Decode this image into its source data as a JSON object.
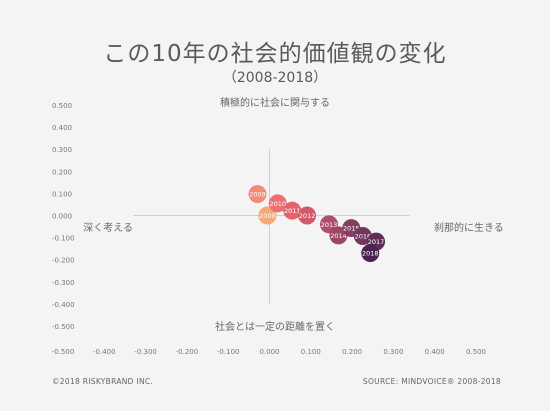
{
  "title": "この10年の社会的価値観の変化",
  "subtitle": "（2008-2018）",
  "footer_left": "©2018 RISKYBRAND INC.",
  "footer_right": "SOURCE: MINDVOICE® 2008-2018",
  "chart_data": {
    "type": "scatter",
    "xlim": [
      -0.5,
      0.5
    ],
    "ylim": [
      -0.5,
      0.5
    ],
    "x_ticks": [
      "-0.500",
      "-0.400",
      "-0.300",
      "-0.200",
      "-0.100",
      "0.000",
      "0.100",
      "0.200",
      "0.300",
      "0.400",
      "0.500"
    ],
    "y_ticks": [
      "0.500",
      "0.400",
      "0.300",
      "0.200",
      "0.100",
      "0.000",
      "-0.100",
      "-0.200",
      "-0.300",
      "-0.400",
      "-0.500"
    ],
    "grid": false,
    "axis_labels": {
      "top": "積極的に社会に関与する",
      "bottom": "社会とは一定の距離を置く",
      "left": "深く考える",
      "right": "刹那的に生きる"
    },
    "points": [
      {
        "label": "2008",
        "x": -0.005,
        "y": 0.0,
        "color": "#f6a876"
      },
      {
        "label": "2009",
        "x": -0.029,
        "y": 0.097,
        "color": "#f28a78"
      },
      {
        "label": "2010",
        "x": 0.02,
        "y": 0.055,
        "color": "#ec6f72"
      },
      {
        "label": "2011",
        "x": 0.055,
        "y": 0.022,
        "color": "#e3646c"
      },
      {
        "label": "2012",
        "x": 0.091,
        "y": 0.0,
        "color": "#d15a6a"
      },
      {
        "label": "2013",
        "x": 0.144,
        "y": -0.04,
        "color": "#b04e6a"
      },
      {
        "label": "2014",
        "x": 0.167,
        "y": -0.09,
        "color": "#9c4668"
      },
      {
        "label": "2015",
        "x": 0.198,
        "y": -0.057,
        "color": "#853d62"
      },
      {
        "label": "2016",
        "x": 0.226,
        "y": -0.093,
        "color": "#72365d"
      },
      {
        "label": "2017",
        "x": 0.258,
        "y": -0.118,
        "color": "#5f2e58"
      },
      {
        "label": "2018",
        "x": 0.244,
        "y": -0.17,
        "color": "#4a2550"
      }
    ]
  }
}
